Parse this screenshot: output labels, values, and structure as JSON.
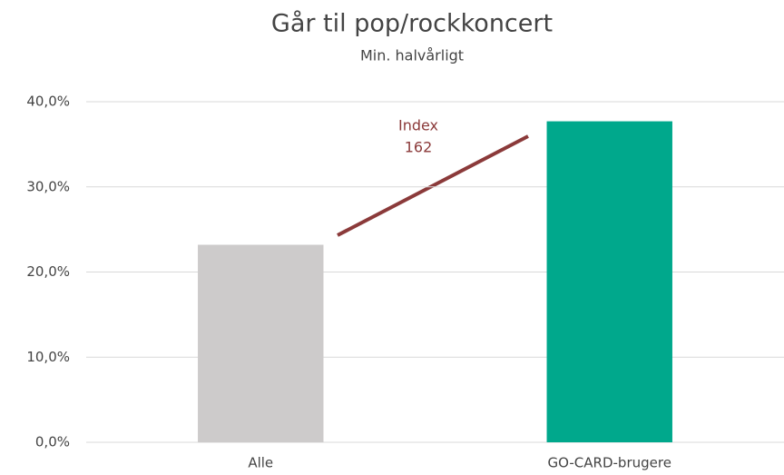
{
  "chart_data": {
    "type": "bar",
    "title": "Går til pop/rockkoncert",
    "subtitle": "Min. halvårligt",
    "categories": [
      "Alle",
      "GO-CARD-brugere"
    ],
    "values": [
      23.2,
      37.7
    ],
    "colors": [
      "#cdcbcb",
      "#00a88c"
    ],
    "ylim": [
      0,
      40
    ],
    "yticks": [
      {
        "value": 0,
        "label": "0,0%"
      },
      {
        "value": 10,
        "label": "10,0%"
      },
      {
        "value": 20,
        "label": "20,0%"
      },
      {
        "value": 30,
        "label": "30,0%"
      },
      {
        "value": 40,
        "label": "40,0%"
      }
    ],
    "grid": true,
    "annotation": [
      "Index",
      "162"
    ]
  }
}
